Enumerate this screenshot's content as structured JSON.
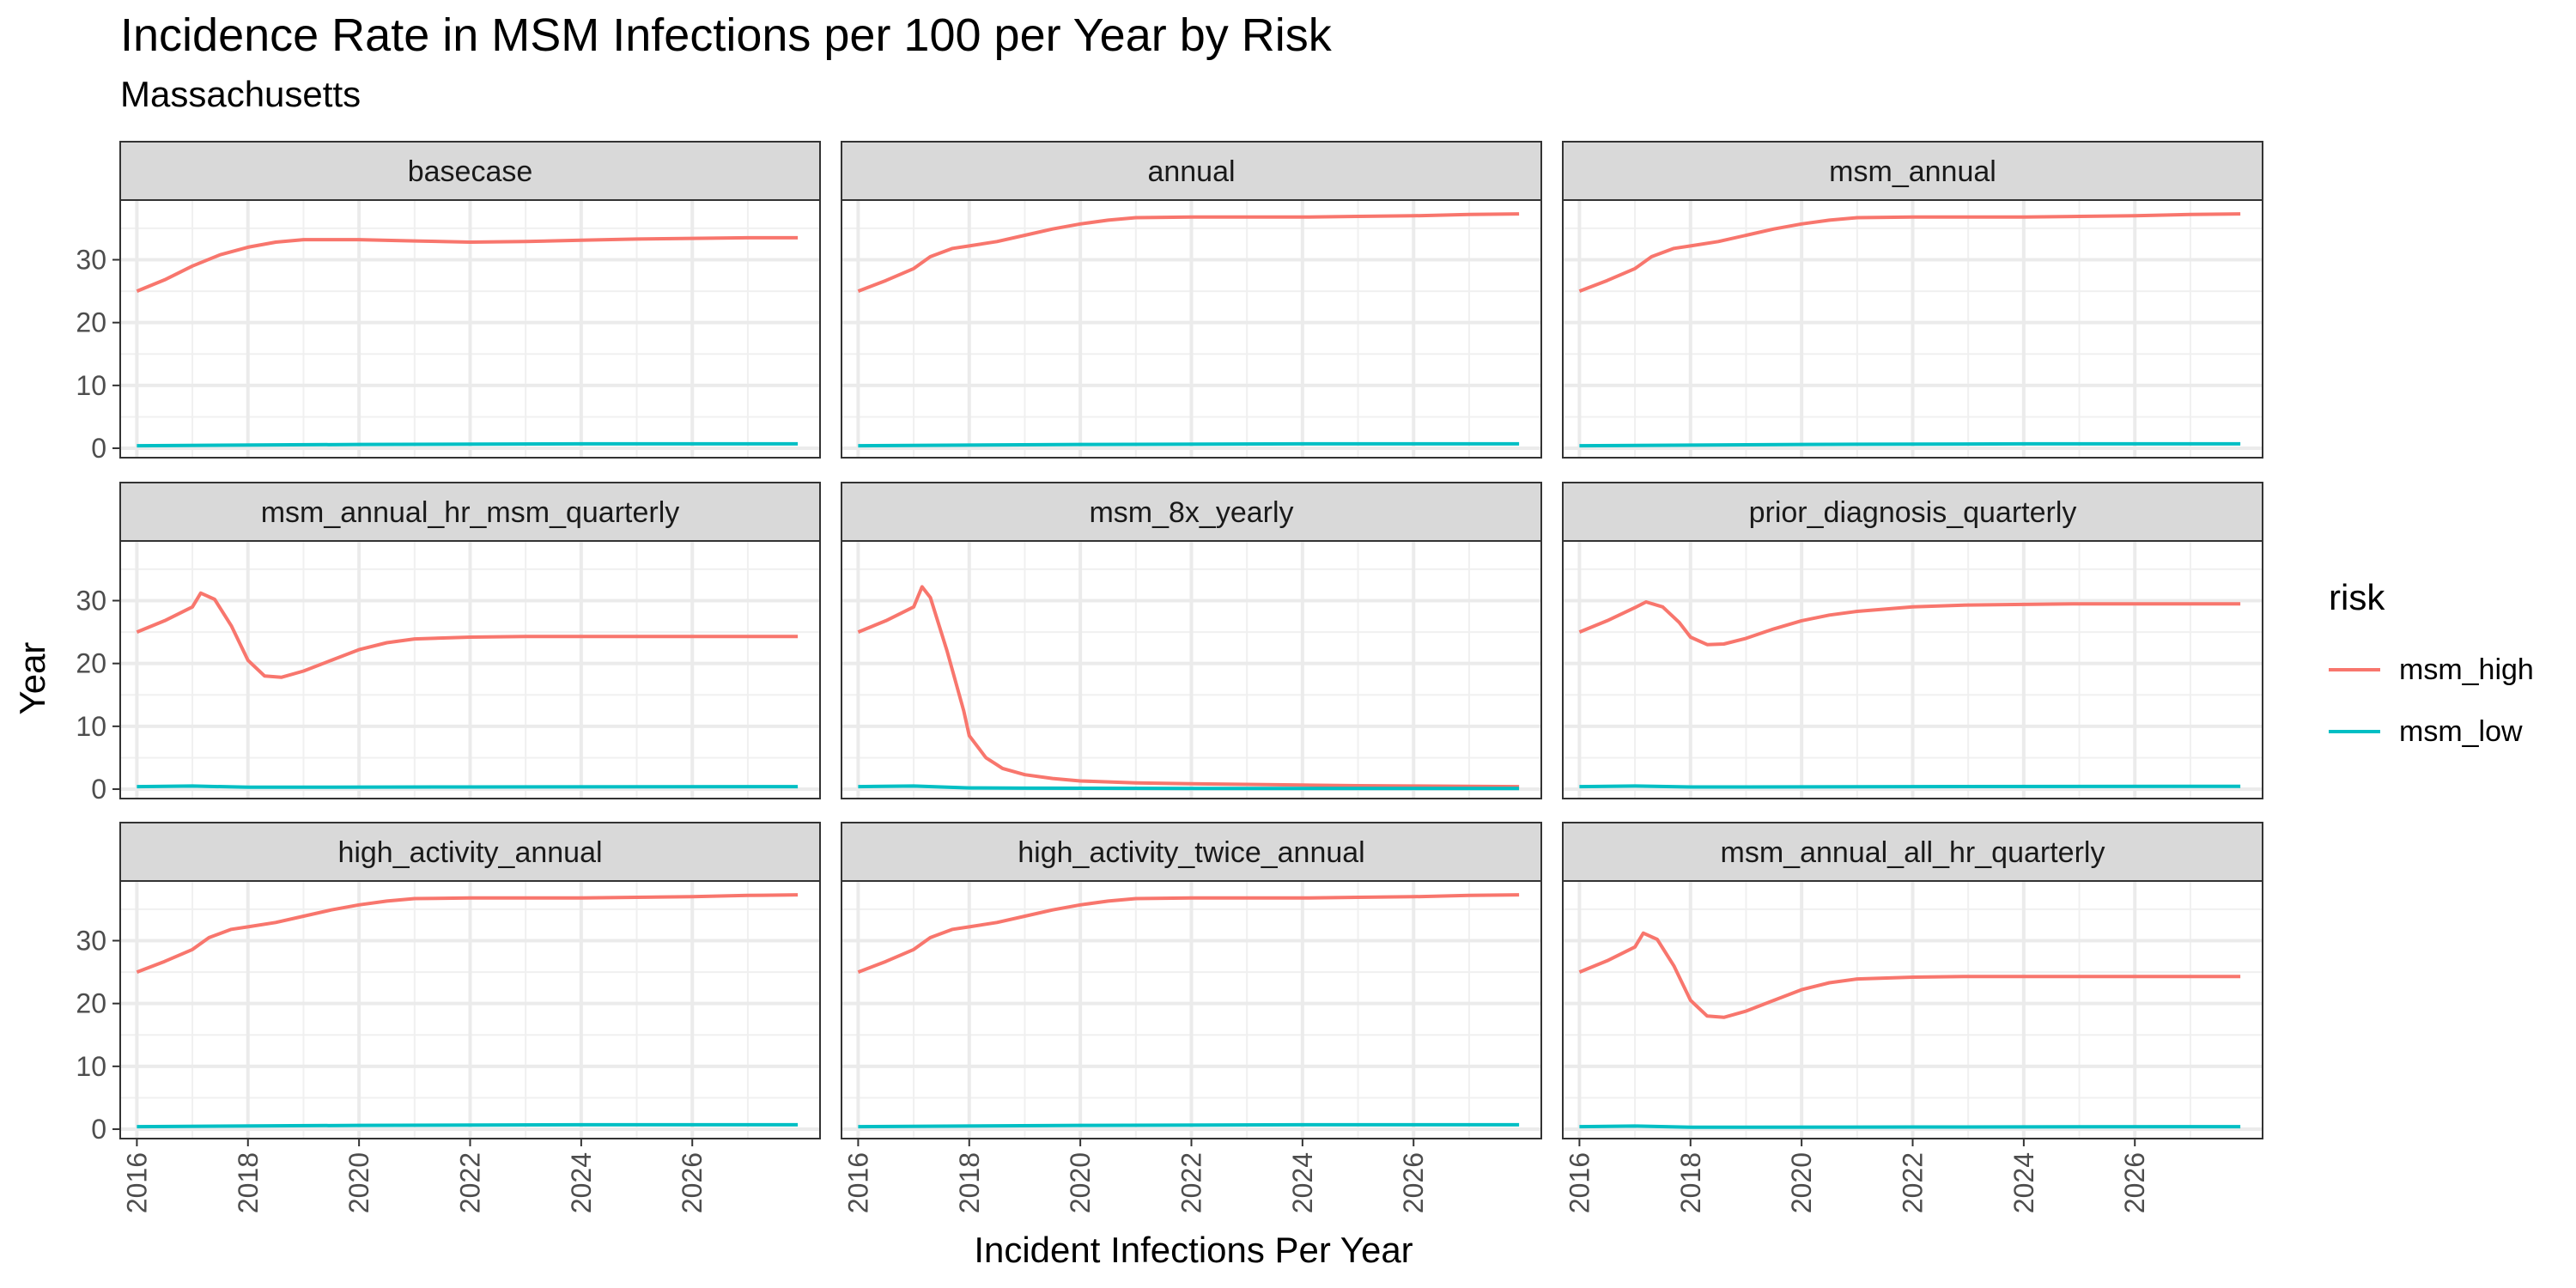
{
  "chart_data": {
    "type": "line",
    "title": "Incidence Rate in MSM Infections per 100 per Year by Risk",
    "subtitle": "Massachusetts",
    "xlabel": "Incident Infections Per Year",
    "ylabel": "Year",
    "xlim": [
      2015.7,
      2028.3
    ],
    "ylim": [
      -1.5,
      39.5
    ],
    "x_ticks": [
      2016,
      2018,
      2020,
      2022,
      2024,
      2026
    ],
    "y_ticks": [
      0,
      10,
      20,
      30
    ],
    "grid": true,
    "legend": {
      "title": "risk",
      "placement": "right",
      "entries": [
        {
          "name": "msm_high",
          "color": "#F8766D"
        },
        {
          "name": "msm_low",
          "color": "#00BFC4"
        }
      ]
    },
    "panels": [
      {
        "name": "basecase",
        "series": [
          {
            "name": "msm_high",
            "x": [
              2016,
              2016.5,
              2017,
              2017.5,
              2018,
              2018.5,
              2019,
              2020,
              2021,
              2022,
              2023,
              2024,
              2025,
              2026,
              2027,
              2027.9
            ],
            "y": [
              25,
              26.8,
              29,
              30.8,
              32,
              32.8,
              33.2,
              33.2,
              33,
              32.8,
              32.9,
              33.1,
              33.3,
              33.4,
              33.5,
              33.5
            ]
          },
          {
            "name": "msm_low",
            "x": [
              2016,
              2020,
              2024,
              2027.9
            ],
            "y": [
              0.4,
              0.6,
              0.7,
              0.7
            ]
          }
        ]
      },
      {
        "name": "annual",
        "series": [
          {
            "name": "msm_high",
            "x": [
              2016,
              2016.5,
              2017,
              2017.3,
              2017.7,
              2018,
              2018.5,
              2019,
              2019.5,
              2020,
              2020.5,
              2021,
              2022,
              2023,
              2024,
              2025,
              2026,
              2027,
              2027.9
            ],
            "y": [
              25,
              26.7,
              28.6,
              30.5,
              31.8,
              32.2,
              32.9,
              33.9,
              34.9,
              35.7,
              36.3,
              36.7,
              36.8,
              36.8,
              36.8,
              36.9,
              37.0,
              37.2,
              37.3
            ]
          },
          {
            "name": "msm_low",
            "x": [
              2016,
              2020,
              2024,
              2027.9
            ],
            "y": [
              0.4,
              0.6,
              0.7,
              0.7
            ]
          }
        ]
      },
      {
        "name": "msm_annual",
        "series": [
          {
            "name": "msm_high",
            "x": [
              2016,
              2016.5,
              2017,
              2017.3,
              2017.7,
              2018,
              2018.5,
              2019,
              2019.5,
              2020,
              2020.5,
              2021,
              2022,
              2023,
              2024,
              2025,
              2026,
              2027,
              2027.9
            ],
            "y": [
              25,
              26.7,
              28.6,
              30.5,
              31.8,
              32.2,
              32.9,
              33.9,
              34.9,
              35.7,
              36.3,
              36.7,
              36.8,
              36.8,
              36.8,
              36.9,
              37.0,
              37.2,
              37.3
            ]
          },
          {
            "name": "msm_low",
            "x": [
              2016,
              2020,
              2024,
              2027.9
            ],
            "y": [
              0.4,
              0.6,
              0.7,
              0.7
            ]
          }
        ]
      },
      {
        "name": "msm_annual_hr_msm_quarterly",
        "series": [
          {
            "name": "msm_high",
            "x": [
              2016,
              2016.5,
              2017,
              2017.15,
              2017.4,
              2017.7,
              2018,
              2018.3,
              2018.6,
              2019,
              2019.5,
              2020,
              2020.5,
              2021,
              2022,
              2023,
              2024,
              2025,
              2026,
              2027.9
            ],
            "y": [
              25,
              26.8,
              29,
              31.2,
              30.2,
              26,
              20.5,
              18,
              17.8,
              18.8,
              20.5,
              22.2,
              23.3,
              23.9,
              24.2,
              24.3,
              24.3,
              24.3,
              24.3,
              24.3
            ]
          },
          {
            "name": "msm_low",
            "x": [
              2016,
              2017,
              2018,
              2019,
              2022,
              2027.9
            ],
            "y": [
              0.4,
              0.5,
              0.3,
              0.3,
              0.35,
              0.4
            ]
          }
        ]
      },
      {
        "name": "msm_8x_yearly",
        "series": [
          {
            "name": "msm_high",
            "x": [
              2016,
              2016.5,
              2017,
              2017.15,
              2017.3,
              2017.6,
              2017.9,
              2018,
              2018.3,
              2018.6,
              2019,
              2019.5,
              2020,
              2021,
              2022,
              2023,
              2024,
              2025,
              2026,
              2027.9
            ],
            "y": [
              25,
              26.8,
              29,
              32.2,
              30.5,
              22,
              12.5,
              8.5,
              5,
              3.3,
              2.3,
              1.7,
              1.3,
              1.0,
              0.85,
              0.75,
              0.65,
              0.55,
              0.5,
              0.4
            ]
          },
          {
            "name": "msm_low",
            "x": [
              2016,
              2017,
              2018,
              2019,
              2022,
              2027.9
            ],
            "y": [
              0.4,
              0.5,
              0.2,
              0.15,
              0.1,
              0.1
            ]
          }
        ]
      },
      {
        "name": "prior_diagnosis_quarterly",
        "series": [
          {
            "name": "msm_high",
            "x": [
              2016,
              2016.5,
              2017,
              2017.2,
              2017.5,
              2017.8,
              2018,
              2018.3,
              2018.6,
              2019,
              2019.5,
              2020,
              2020.5,
              2021,
              2022,
              2023,
              2024,
              2025,
              2026,
              2027.9
            ],
            "y": [
              25,
              26.8,
              28.9,
              29.8,
              29,
              26.5,
              24.2,
              23,
              23.1,
              24,
              25.5,
              26.8,
              27.7,
              28.3,
              29,
              29.3,
              29.4,
              29.5,
              29.5,
              29.5
            ]
          },
          {
            "name": "msm_low",
            "x": [
              2016,
              2017,
              2018,
              2019,
              2022,
              2027.9
            ],
            "y": [
              0.4,
              0.5,
              0.35,
              0.35,
              0.4,
              0.45
            ]
          }
        ]
      },
      {
        "name": "high_activity_annual",
        "series": [
          {
            "name": "msm_high",
            "x": [
              2016,
              2016.5,
              2017,
              2017.3,
              2017.7,
              2018,
              2018.5,
              2019,
              2019.5,
              2020,
              2020.5,
              2021,
              2022,
              2023,
              2024,
              2025,
              2026,
              2027,
              2027.9
            ],
            "y": [
              25,
              26.7,
              28.6,
              30.5,
              31.8,
              32.2,
              32.9,
              33.9,
              34.9,
              35.7,
              36.3,
              36.7,
              36.8,
              36.8,
              36.8,
              36.9,
              37.0,
              37.2,
              37.3
            ]
          },
          {
            "name": "msm_low",
            "x": [
              2016,
              2020,
              2024,
              2027.9
            ],
            "y": [
              0.4,
              0.6,
              0.7,
              0.7
            ]
          }
        ]
      },
      {
        "name": "high_activity_twice_annual",
        "series": [
          {
            "name": "msm_high",
            "x": [
              2016,
              2016.5,
              2017,
              2017.3,
              2017.7,
              2018,
              2018.5,
              2019,
              2019.5,
              2020,
              2020.5,
              2021,
              2022,
              2023,
              2024,
              2025,
              2026,
              2027,
              2027.9
            ],
            "y": [
              25,
              26.7,
              28.6,
              30.5,
              31.8,
              32.2,
              32.9,
              33.9,
              34.9,
              35.7,
              36.3,
              36.7,
              36.8,
              36.8,
              36.8,
              36.9,
              37.0,
              37.2,
              37.3
            ]
          },
          {
            "name": "msm_low",
            "x": [
              2016,
              2020,
              2024,
              2027.9
            ],
            "y": [
              0.4,
              0.6,
              0.7,
              0.7
            ]
          }
        ]
      },
      {
        "name": "msm_annual_all_hr_quarterly",
        "series": [
          {
            "name": "msm_high",
            "x": [
              2016,
              2016.5,
              2017,
              2017.15,
              2017.4,
              2017.7,
              2018,
              2018.3,
              2018.6,
              2019,
              2019.5,
              2020,
              2020.5,
              2021,
              2022,
              2023,
              2024,
              2025,
              2026,
              2027.9
            ],
            "y": [
              25,
              26.8,
              29,
              31.2,
              30.2,
              26,
              20.5,
              18,
              17.8,
              18.8,
              20.5,
              22.2,
              23.3,
              23.9,
              24.2,
              24.3,
              24.3,
              24.3,
              24.3,
              24.3
            ]
          },
          {
            "name": "msm_low",
            "x": [
              2016,
              2017,
              2018,
              2019,
              2022,
              2027.9
            ],
            "y": [
              0.4,
              0.5,
              0.3,
              0.3,
              0.35,
              0.4
            ]
          }
        ]
      }
    ]
  }
}
